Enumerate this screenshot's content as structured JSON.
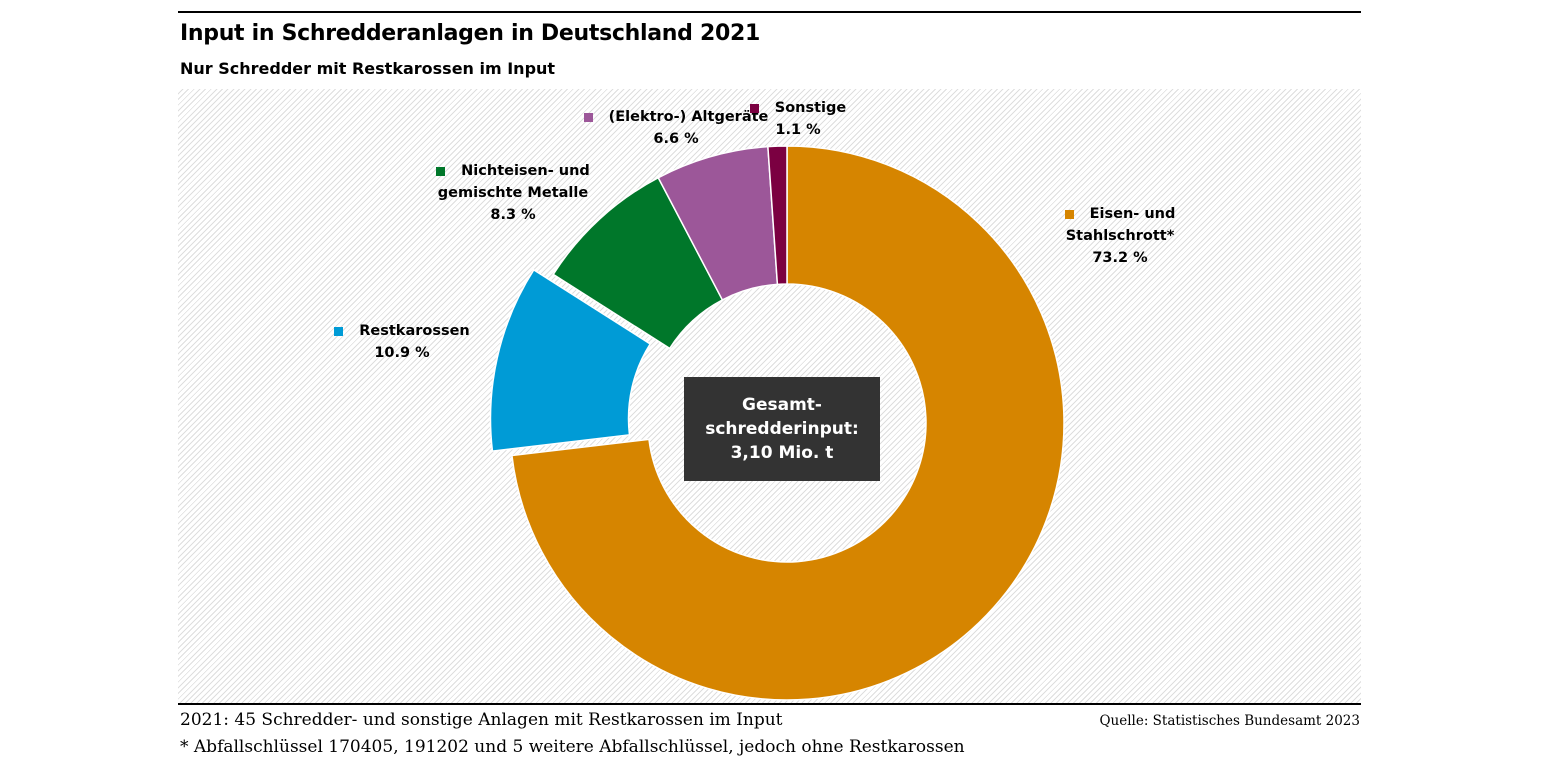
{
  "title": "Input in Schredderanlagen in Deutschland 2021",
  "subtitle": "Nur Schredder mit Restkarossen im Input",
  "center_label": [
    "Gesamt-",
    "schredderinput:",
    "3,10 Mio. t"
  ],
  "footnote_1": "2021: 45 Schredder- und sonstige Anlagen mit Restkarossen im Input",
  "footnote_2": "* Abfallschlüssel 170405, 191202 und 5 weitere Abfallschlüssel, jedoch ohne Restkarossen",
  "source": "Quelle: Statistisches Bundesamt 2023",
  "chart_data": {
    "type": "pie",
    "variant": "donut",
    "title": "Input in Schredderanlagen in Deutschland 2021",
    "unit": "%",
    "start": "12 o'clock, clockwise",
    "slices": [
      {
        "name": "Eisen- und Stahlschrott*",
        "label_lines": [
          "Eisen- und",
          "Stahlschrott*"
        ],
        "value": 73.2,
        "value_label": "73.2 %",
        "color": "#d68500",
        "exploded": false
      },
      {
        "name": "Restkarossen",
        "label_lines": [
          "Restkarossen"
        ],
        "value": 10.9,
        "value_label": "10.9 %",
        "color": "#009bd6",
        "exploded": true
      },
      {
        "name": "Nichteisen- und gemischte Metalle",
        "label_lines": [
          "Nichteisen- und",
          "gemischte Metalle"
        ],
        "value": 8.3,
        "value_label": "8.3 %",
        "color": "#00772a",
        "exploded": false
      },
      {
        "name": "(Elektro-) Altgeräte",
        "label_lines": [
          "(Elektro-) Altgeräte"
        ],
        "value": 6.6,
        "value_label": "6.6 %",
        "color": "#9c5799",
        "exploded": false
      },
      {
        "name": "Sonstige",
        "label_lines": [
          "Sonstige"
        ],
        "value": 1.1,
        "value_label": "1.1 %",
        "color": "#7b0041",
        "exploded": false
      }
    ]
  }
}
